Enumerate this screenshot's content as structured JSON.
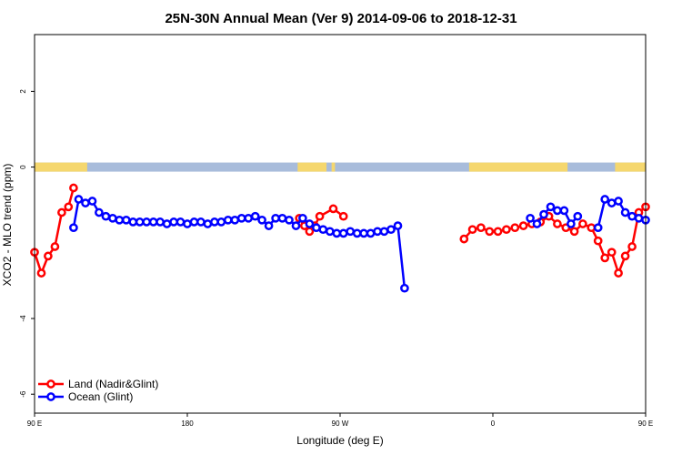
{
  "chart_data": {
    "type": "line",
    "title": "25N-30N Annual Mean (Ver 9)   2014-09-06 to 2018-12-31",
    "xlabel": "Longitude (deg E)",
    "ylabel": "XCO2 - MLO trend (ppm)",
    "xlim": [
      90,
      450
    ],
    "ylim": [
      -6.5,
      3.5
    ],
    "x_ticks": [
      {
        "value": 90,
        "label": "90 E"
      },
      {
        "value": 180,
        "label": "180"
      },
      {
        "value": 270,
        "label": "90 W"
      },
      {
        "value": 360,
        "label": "0"
      },
      {
        "value": 450,
        "label": "90 E"
      },
      {
        "value": 540,
        "label": "180"
      }
    ],
    "y_ticks": [
      {
        "value": 2,
        "label": "2"
      },
      {
        "value": 0,
        "label": "0"
      },
      {
        "value": -4,
        "label": "-4"
      },
      {
        "value": -6,
        "label": "-6"
      }
    ],
    "map_strip": {
      "y_center": 0,
      "land_color": "#f5d76e",
      "ocean_color": "#a8bcdb",
      "land_ranges": [
        [
          90,
          121
        ],
        [
          245,
          262
        ],
        [
          265,
          267
        ],
        [
          346,
          404
        ],
        [
          432,
          450
        ]
      ]
    },
    "legend": {
      "position": "bottom-left"
    },
    "series": [
      {
        "name": "Land (Nadir&Glint)",
        "color": "#ff0000",
        "points": [
          [
            [
              90,
              -2.25
            ],
            [
              94,
              -2.8
            ],
            [
              98,
              -2.35
            ],
            [
              102,
              -2.1
            ],
            [
              106,
              -1.2
            ],
            [
              110,
              -1.05
            ],
            [
              113,
              -0.55
            ]
          ],
          [
            [
              246,
              -1.35
            ],
            [
              249,
              -1.55
            ],
            [
              252,
              -1.7
            ],
            [
              255,
              -1.55
            ],
            [
              258,
              -1.3
            ],
            [
              266,
              -1.1
            ],
            [
              272,
              -1.3
            ]
          ],
          [
            [
              343,
              -1.9
            ],
            [
              348,
              -1.65
            ],
            [
              353,
              -1.6
            ],
            [
              358,
              -1.7
            ],
            [
              363,
              -1.7
            ],
            [
              368,
              -1.65
            ],
            [
              373,
              -1.6
            ],
            [
              378,
              -1.55
            ],
            [
              383,
              -1.5
            ],
            [
              388,
              -1.45
            ],
            [
              393,
              -1.3
            ],
            [
              398,
              -1.5
            ],
            [
              403,
              -1.6
            ],
            [
              408,
              -1.7
            ],
            [
              413,
              -1.5
            ],
            [
              418,
              -1.6
            ],
            [
              422,
              -1.95
            ],
            [
              426,
              -2.4
            ],
            [
              430,
              -2.25
            ],
            [
              434,
              -2.8
            ],
            [
              438,
              -2.35
            ],
            [
              442,
              -2.1
            ],
            [
              446,
              -1.2
            ],
            [
              450,
              -1.05
            ]
          ]
        ]
      },
      {
        "name": "Ocean (Glint)",
        "color": "#0000ff",
        "points": [
          [
            [
              113,
              -1.6
            ],
            [
              116,
              -0.85
            ],
            [
              120,
              -0.95
            ],
            [
              124,
              -0.9
            ],
            [
              128,
              -1.2
            ],
            [
              132,
              -1.3
            ],
            [
              136,
              -1.35
            ],
            [
              140,
              -1.4
            ],
            [
              144,
              -1.4
            ],
            [
              148,
              -1.45
            ],
            [
              152,
              -1.45
            ],
            [
              156,
              -1.45
            ],
            [
              160,
              -1.45
            ],
            [
              164,
              -1.45
            ],
            [
              168,
              -1.5
            ],
            [
              172,
              -1.45
            ],
            [
              176,
              -1.45
            ],
            [
              180,
              -1.5
            ],
            [
              184,
              -1.45
            ],
            [
              188,
              -1.45
            ],
            [
              192,
              -1.5
            ],
            [
              196,
              -1.45
            ],
            [
              200,
              -1.45
            ],
            [
              204,
              -1.4
            ],
            [
              208,
              -1.4
            ],
            [
              212,
              -1.35
            ],
            [
              216,
              -1.35
            ],
            [
              220,
              -1.3
            ],
            [
              224,
              -1.4
            ],
            [
              228,
              -1.55
            ],
            [
              232,
              -1.35
            ],
            [
              236,
              -1.35
            ],
            [
              240,
              -1.4
            ],
            [
              244,
              -1.55
            ],
            [
              248,
              -1.35
            ],
            [
              252,
              -1.5
            ],
            [
              256,
              -1.6
            ],
            [
              260,
              -1.65
            ],
            [
              264,
              -1.7
            ],
            [
              268,
              -1.75
            ],
            [
              272,
              -1.75
            ],
            [
              276,
              -1.7
            ],
            [
              280,
              -1.75
            ],
            [
              284,
              -1.75
            ],
            [
              288,
              -1.75
            ],
            [
              292,
              -1.7
            ],
            [
              296,
              -1.7
            ],
            [
              300,
              -1.65
            ],
            [
              304,
              -1.55
            ],
            [
              308,
              -3.2
            ]
          ],
          [
            [
              382,
              -1.35
            ],
            [
              386,
              -1.5
            ],
            [
              390,
              -1.25
            ],
            [
              394,
              -1.05
            ],
            [
              398,
              -1.15
            ],
            [
              402,
              -1.15
            ],
            [
              406,
              -1.5
            ],
            [
              410,
              -1.3
            ]
          ],
          [
            [
              422,
              -1.6
            ],
            [
              426,
              -0.85
            ],
            [
              430,
              -0.95
            ],
            [
              434,
              -0.9
            ],
            [
              438,
              -1.2
            ],
            [
              442,
              -1.3
            ],
            [
              446,
              -1.35
            ],
            [
              450,
              -1.4
            ]
          ]
        ]
      }
    ]
  }
}
